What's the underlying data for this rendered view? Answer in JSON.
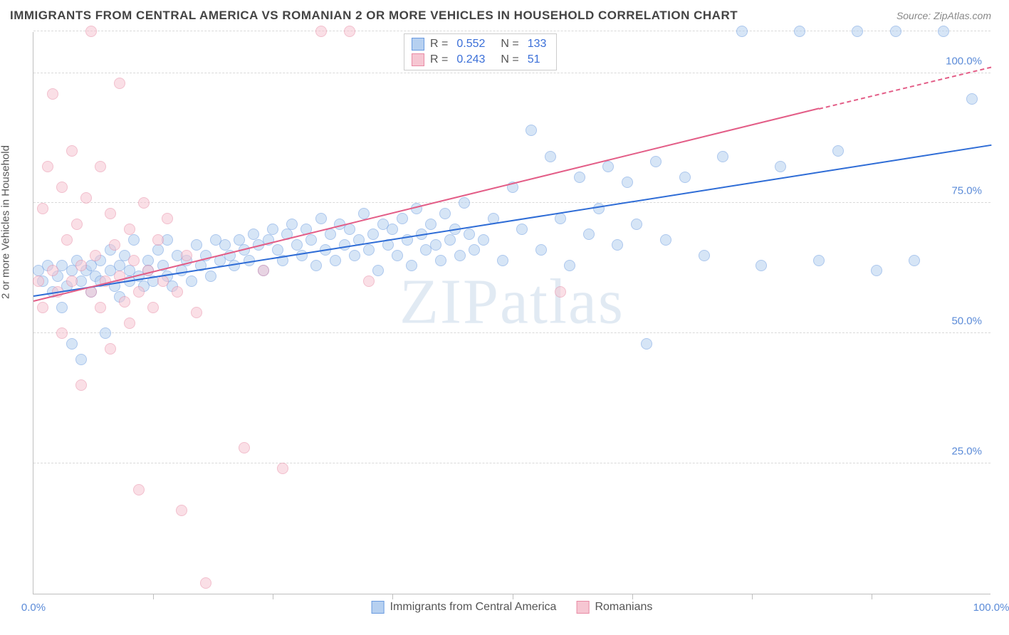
{
  "title": "IMMIGRANTS FROM CENTRAL AMERICA VS ROMANIAN 2 OR MORE VEHICLES IN HOUSEHOLD CORRELATION CHART",
  "source_prefix": "Source: ",
  "source_link": "ZipAtlas.com",
  "y_axis_label": "2 or more Vehicles in Household",
  "watermark": "ZIPatlas",
  "chart": {
    "type": "scatter",
    "xlim": [
      0,
      100
    ],
    "ylim": [
      0,
      108
    ],
    "x_min_label": "0.0%",
    "x_max_label": "100.0%",
    "y_gridlines": [
      25,
      50,
      75,
      100,
      108
    ],
    "y_tick_labels": {
      "25": "25.0%",
      "50": "50.0%",
      "75": "75.0%",
      "100": "100.0%"
    },
    "y_tick_color": "#5b8bd8",
    "x_label_color": "#5b8bd8",
    "x_ticks_minor": [
      12.5,
      25,
      37.5,
      50,
      62.5,
      75,
      87.5
    ],
    "grid_color": "#d9d9d9",
    "axis_color": "#bfbfbf",
    "background_color": "#ffffff",
    "marker_radius": 8,
    "marker_opacity": 0.55,
    "series": [
      {
        "id": "central_america",
        "name": "Immigrants from Central America",
        "fill": "#b6d0f0",
        "stroke": "#6a9be0",
        "trend_color": "#2e6cd6",
        "R": "0.552",
        "N": "133",
        "trend": {
          "x1": 0,
          "y1": 57,
          "x2": 100,
          "y2": 86
        },
        "points": [
          [
            0.5,
            62
          ],
          [
            1,
            60
          ],
          [
            1.5,
            63
          ],
          [
            2,
            58
          ],
          [
            2.5,
            61
          ],
          [
            3,
            63
          ],
          [
            3,
            55
          ],
          [
            3.5,
            59
          ],
          [
            4,
            62
          ],
          [
            4,
            48
          ],
          [
            4.5,
            64
          ],
          [
            5,
            60
          ],
          [
            5,
            45
          ],
          [
            5.5,
            62
          ],
          [
            6,
            63
          ],
          [
            6,
            58
          ],
          [
            6.5,
            61
          ],
          [
            7,
            64
          ],
          [
            7,
            60
          ],
          [
            7.5,
            50
          ],
          [
            8,
            62
          ],
          [
            8,
            66
          ],
          [
            8.5,
            59
          ],
          [
            9,
            63
          ],
          [
            9,
            57
          ],
          [
            9.5,
            65
          ],
          [
            10,
            62
          ],
          [
            10,
            60
          ],
          [
            10.5,
            68
          ],
          [
            11,
            61
          ],
          [
            11.5,
            59
          ],
          [
            12,
            64
          ],
          [
            12,
            62
          ],
          [
            12.5,
            60
          ],
          [
            13,
            66
          ],
          [
            13.5,
            63
          ],
          [
            14,
            61
          ],
          [
            14,
            68
          ],
          [
            14.5,
            59
          ],
          [
            15,
            65
          ],
          [
            15.5,
            62
          ],
          [
            16,
            64
          ],
          [
            16.5,
            60
          ],
          [
            17,
            67
          ],
          [
            17.5,
            63
          ],
          [
            18,
            65
          ],
          [
            18.5,
            61
          ],
          [
            19,
            68
          ],
          [
            19.5,
            64
          ],
          [
            20,
            67
          ],
          [
            20.5,
            65
          ],
          [
            21,
            63
          ],
          [
            21.5,
            68
          ],
          [
            22,
            66
          ],
          [
            22.5,
            64
          ],
          [
            23,
            69
          ],
          [
            23.5,
            67
          ],
          [
            24,
            62
          ],
          [
            24.5,
            68
          ],
          [
            25,
            70
          ],
          [
            25.5,
            66
          ],
          [
            26,
            64
          ],
          [
            26.5,
            69
          ],
          [
            27,
            71
          ],
          [
            27.5,
            67
          ],
          [
            28,
            65
          ],
          [
            28.5,
            70
          ],
          [
            29,
            68
          ],
          [
            29.5,
            63
          ],
          [
            30,
            72
          ],
          [
            30.5,
            66
          ],
          [
            31,
            69
          ],
          [
            31.5,
            64
          ],
          [
            32,
            71
          ],
          [
            32.5,
            67
          ],
          [
            33,
            70
          ],
          [
            33.5,
            65
          ],
          [
            34,
            68
          ],
          [
            34.5,
            73
          ],
          [
            35,
            66
          ],
          [
            35.5,
            69
          ],
          [
            36,
            62
          ],
          [
            36.5,
            71
          ],
          [
            37,
            67
          ],
          [
            37.5,
            70
          ],
          [
            38,
            65
          ],
          [
            38.5,
            72
          ],
          [
            39,
            68
          ],
          [
            39.5,
            63
          ],
          [
            40,
            74
          ],
          [
            40.5,
            69
          ],
          [
            41,
            66
          ],
          [
            41.5,
            71
          ],
          [
            42,
            67
          ],
          [
            42.5,
            64
          ],
          [
            43,
            73
          ],
          [
            43.5,
            68
          ],
          [
            44,
            70
          ],
          [
            44.5,
            65
          ],
          [
            45,
            75
          ],
          [
            45.5,
            69
          ],
          [
            46,
            66
          ],
          [
            47,
            68
          ],
          [
            48,
            72
          ],
          [
            49,
            64
          ],
          [
            50,
            78
          ],
          [
            51,
            70
          ],
          [
            52,
            89
          ],
          [
            53,
            66
          ],
          [
            54,
            84
          ],
          [
            55,
            72
          ],
          [
            56,
            63
          ],
          [
            57,
            80
          ],
          [
            58,
            69
          ],
          [
            59,
            74
          ],
          [
            60,
            82
          ],
          [
            61,
            67
          ],
          [
            62,
            79
          ],
          [
            63,
            71
          ],
          [
            64,
            48
          ],
          [
            65,
            83
          ],
          [
            66,
            68
          ],
          [
            68,
            80
          ],
          [
            70,
            65
          ],
          [
            72,
            84
          ],
          [
            74,
            108
          ],
          [
            76,
            63
          ],
          [
            78,
            82
          ],
          [
            80,
            108
          ],
          [
            82,
            64
          ],
          [
            84,
            85
          ],
          [
            86,
            108
          ],
          [
            88,
            62
          ],
          [
            90,
            108
          ],
          [
            92,
            64
          ],
          [
            95,
            108
          ],
          [
            98,
            95
          ]
        ]
      },
      {
        "id": "romanians",
        "name": "Romanians",
        "fill": "#f6c6d2",
        "stroke": "#e88ba5",
        "trend_color": "#e35d87",
        "R": "0.243",
        "N": "51",
        "trend": {
          "x1": 0,
          "y1": 56,
          "x2": 82,
          "y2": 93
        },
        "trend_dash": {
          "x1": 82,
          "y1": 93,
          "x2": 100,
          "y2": 101
        },
        "points": [
          [
            0.5,
            60
          ],
          [
            1,
            74
          ],
          [
            1,
            55
          ],
          [
            1.5,
            82
          ],
          [
            2,
            62
          ],
          [
            2,
            96
          ],
          [
            2.5,
            58
          ],
          [
            3,
            78
          ],
          [
            3,
            50
          ],
          [
            3.5,
            68
          ],
          [
            4,
            85
          ],
          [
            4,
            60
          ],
          [
            4.5,
            71
          ],
          [
            5,
            63
          ],
          [
            5,
            40
          ],
          [
            5.5,
            76
          ],
          [
            6,
            58
          ],
          [
            6,
            108
          ],
          [
            6.5,
            65
          ],
          [
            7,
            55
          ],
          [
            7,
            82
          ],
          [
            7.5,
            60
          ],
          [
            8,
            73
          ],
          [
            8,
            47
          ],
          [
            8.5,
            67
          ],
          [
            9,
            61
          ],
          [
            9,
            98
          ],
          [
            9.5,
            56
          ],
          [
            10,
            70
          ],
          [
            10,
            52
          ],
          [
            10.5,
            64
          ],
          [
            11,
            58
          ],
          [
            11,
            20
          ],
          [
            11.5,
            75
          ],
          [
            12,
            62
          ],
          [
            12.5,
            55
          ],
          [
            13,
            68
          ],
          [
            13.5,
            60
          ],
          [
            14,
            72
          ],
          [
            15,
            58
          ],
          [
            15.5,
            16
          ],
          [
            16,
            65
          ],
          [
            17,
            54
          ],
          [
            18,
            2
          ],
          [
            22,
            28
          ],
          [
            24,
            62
          ],
          [
            26,
            24
          ],
          [
            30,
            108
          ],
          [
            33,
            108
          ],
          [
            35,
            60
          ],
          [
            55,
            58
          ]
        ]
      }
    ]
  },
  "stat_legend": {
    "R_prefix": "R = ",
    "N_prefix": "N = "
  }
}
